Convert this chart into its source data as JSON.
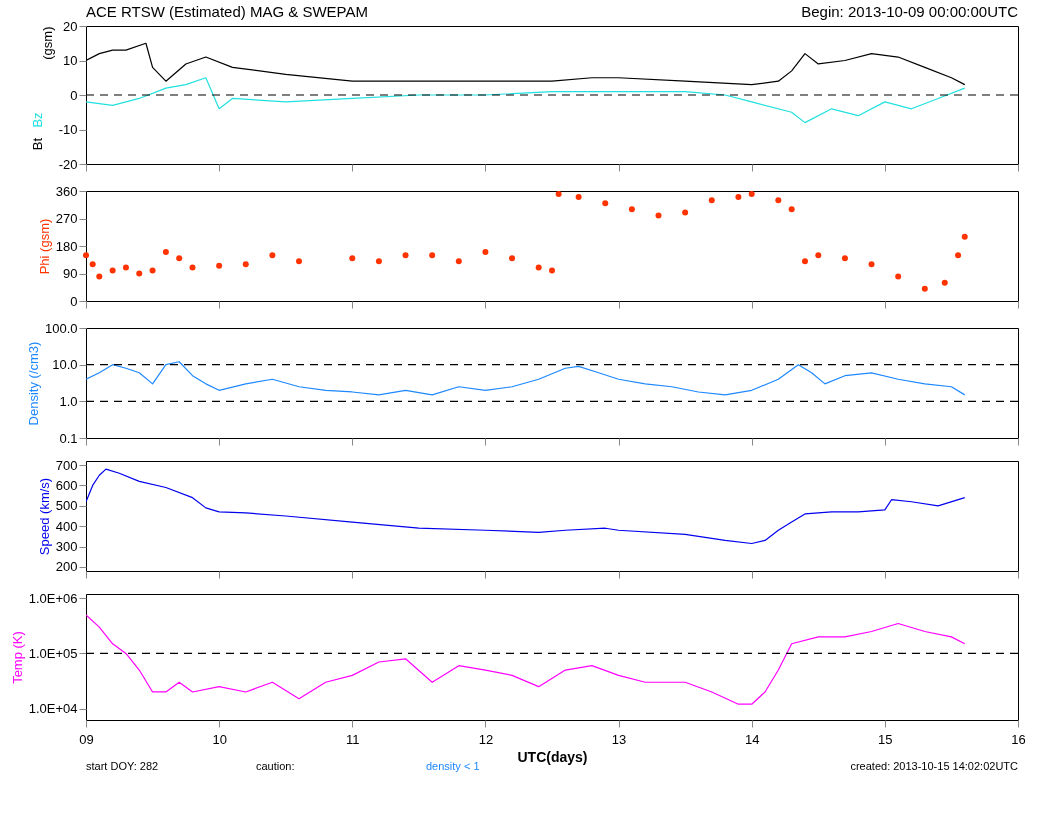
{
  "chart_data": [
    {
      "type": "line",
      "title": "ACE RTSW (Estimated) MAG & SWEPAM",
      "subtitle": "Begin: 2013-10-09 00:00:00UTC",
      "ylabel": "(gsm)",
      "xlim": [
        9,
        16
      ],
      "tick_labels": "y",
      "ylim": [
        -20,
        20
      ],
      "yticks": [
        -20,
        -10,
        0,
        10,
        20
      ],
      "ref_lines": [
        {
          "axis": "y",
          "value": 0,
          "line_style": "dashed",
          "color": "#000000"
        }
      ],
      "series": [
        {
          "name": "Bt",
          "color": "#000000",
          "x": [
            9,
            9.1,
            9.2,
            9.3,
            9.45,
            9.5,
            9.6,
            9.75,
            9.9,
            10.1,
            10.5,
            11,
            11.5,
            12,
            12.5,
            12.8,
            13,
            13.5,
            14,
            14.2,
            14.3,
            14.4,
            14.5,
            14.7,
            14.9,
            15.1,
            15.3,
            15.5,
            15.6
          ],
          "values": [
            10,
            12,
            13,
            13,
            15,
            8,
            4,
            9,
            11,
            8,
            6,
            4,
            4,
            4,
            4,
            5,
            5,
            4,
            3,
            4,
            7,
            12,
            9,
            10,
            12,
            11,
            8,
            5,
            3
          ]
        },
        {
          "name": "Bz",
          "color": "#22e0e0",
          "x": [
            9,
            9.2,
            9.4,
            9.6,
            9.75,
            9.9,
            10,
            10.1,
            10.5,
            11,
            11.5,
            12,
            12.5,
            13,
            13.5,
            13.8,
            14,
            14.3,
            14.4,
            14.6,
            14.8,
            15,
            15.2,
            15.4,
            15.6
          ],
          "values": [
            -2,
            -3,
            -1,
            2,
            3,
            5,
            -4,
            -1,
            -2,
            -1,
            0,
            0,
            1,
            1,
            1,
            0,
            -2,
            -5,
            -8,
            -4,
            -6,
            -2,
            -4,
            -1,
            2
          ]
        }
      ]
    },
    {
      "type": "scatter",
      "ylabel": "Phi (gsm)",
      "marker": "circle",
      "xlim": [
        9,
        16
      ],
      "tick_labels": "y",
      "ylim": [
        0,
        360
      ],
      "yticks": [
        0,
        90,
        180,
        270,
        360
      ],
      "series": [
        {
          "color": "#ff3300",
          "x": [
            9,
            9.05,
            9.1,
            9.2,
            9.3,
            9.4,
            9.5,
            9.6,
            9.7,
            9.8,
            10,
            10.2,
            10.4,
            10.6,
            11,
            11.2,
            11.4,
            11.6,
            11.8,
            12,
            12.2,
            12.4,
            12.5,
            12.55,
            12.7,
            12.9,
            13.1,
            13.3,
            13.5,
            13.7,
            13.9,
            14,
            14.2,
            14.3,
            14.4,
            14.5,
            14.7,
            14.9,
            15.1,
            15.3,
            15.45,
            15.55,
            15.6
          ],
          "values": [
            150,
            120,
            80,
            100,
            110,
            90,
            100,
            160,
            140,
            110,
            115,
            120,
            150,
            130,
            140,
            130,
            150,
            150,
            130,
            160,
            140,
            110,
            100,
            350,
            340,
            320,
            300,
            280,
            290,
            330,
            340,
            350,
            330,
            300,
            130,
            150,
            140,
            120,
            80,
            40,
            60,
            150,
            210
          ]
        }
      ]
    },
    {
      "type": "line",
      "ylabel": "Density (/cm3)",
      "log": true,
      "xlim": [
        9,
        16
      ],
      "tick_labels": "y",
      "ylim": [
        0.1,
        100
      ],
      "yticks": [
        0.1,
        {
          "value": 1,
          "label": "1.0"
        },
        {
          "value": 10,
          "label": "10.0"
        },
        {
          "value": 100,
          "label": "100.0"
        }
      ],
      "ref_lines": [
        {
          "axis": "y",
          "value": 1,
          "line_style": "dashed",
          "color": "#000000"
        },
        {
          "axis": "y",
          "value": 10,
          "line_style": "dashed",
          "color": "#000000"
        }
      ],
      "series": [
        {
          "color": "#1e88ff",
          "x": [
            9,
            9.1,
            9.2,
            9.3,
            9.4,
            9.5,
            9.6,
            9.7,
            9.8,
            9.9,
            10,
            10.2,
            10.4,
            10.6,
            10.8,
            11,
            11.2,
            11.4,
            11.6,
            11.8,
            12,
            12.2,
            12.4,
            12.6,
            12.7,
            12.85,
            13,
            13.2,
            13.4,
            13.6,
            13.8,
            14,
            14.2,
            14.35,
            14.45,
            14.55,
            14.7,
            14.9,
            15.1,
            15.3,
            15.5,
            15.6
          ],
          "values": [
            4,
            6,
            10,
            8,
            6,
            3,
            10,
            12,
            5,
            3,
            2,
            3,
            4,
            2.5,
            2,
            1.8,
            1.5,
            2,
            1.5,
            2.5,
            2,
            2.5,
            4,
            8,
            9,
            6,
            4,
            3,
            2.5,
            1.8,
            1.5,
            2,
            4,
            10,
            6,
            3,
            5,
            6,
            4,
            3,
            2.5,
            1.5
          ]
        }
      ]
    },
    {
      "type": "line",
      "ylabel": "Speed (km/s)",
      "xlim": [
        9,
        16
      ],
      "tick_labels": "y",
      "ylim": [
        180,
        720
      ],
      "yticks": [
        200,
        300,
        400,
        500,
        600,
        700
      ],
      "series": [
        {
          "color": "#0000ee",
          "x": [
            9,
            9.05,
            9.1,
            9.15,
            9.25,
            9.4,
            9.6,
            9.8,
            9.9,
            10,
            10.2,
            10.5,
            11,
            11.5,
            12,
            12.4,
            12.6,
            12.9,
            13,
            13.5,
            13.8,
            14,
            14.1,
            14.2,
            14.3,
            14.4,
            14.6,
            14.8,
            15,
            15.05,
            15.2,
            15.4,
            15.6
          ],
          "values": [
            520,
            600,
            650,
            680,
            660,
            620,
            590,
            540,
            490,
            470,
            465,
            450,
            420,
            390,
            380,
            370,
            380,
            390,
            380,
            360,
            330,
            315,
            330,
            380,
            420,
            460,
            470,
            470,
            480,
            530,
            520,
            500,
            540
          ]
        }
      ]
    },
    {
      "type": "line",
      "ylabel": "Temp (K)",
      "xlabel": "UTC(days)",
      "log": true,
      "xlim": [
        9,
        16
      ],
      "xticks": [
        {
          "value": 9,
          "label": "09"
        },
        10,
        11,
        12,
        13,
        14,
        15,
        16
      ],
      "ylim": [
        6200,
        1200000
      ],
      "yticks": [
        {
          "value": 10000,
          "label": "1.0E+04"
        },
        {
          "value": 100000,
          "label": "1.0E+05"
        },
        {
          "value": 1000000,
          "label": "1.0E+06"
        }
      ],
      "ref_lines": [
        {
          "axis": "y",
          "value": 100000,
          "line_style": "dashed",
          "color": "#000000"
        }
      ],
      "annotations": [
        "start DOY: 282",
        "caution:",
        "density < 1",
        "created: 2013-10-15 14:02:02UTC"
      ],
      "series": [
        {
          "color": "#ff00ff",
          "x": [
            9,
            9.1,
            9.2,
            9.3,
            9.4,
            9.5,
            9.6,
            9.7,
            9.8,
            10,
            10.2,
            10.4,
            10.6,
            10.8,
            11,
            11.2,
            11.4,
            11.6,
            11.8,
            12,
            12.2,
            12.4,
            12.6,
            12.8,
            13,
            13.2,
            13.5,
            13.7,
            13.9,
            14,
            14.1,
            14.2,
            14.3,
            14.5,
            14.7,
            14.9,
            15.1,
            15.3,
            15.5,
            15.6
          ],
          "values": [
            500000,
            300000,
            150000,
            100000,
            50000,
            20000,
            20000,
            30000,
            20000,
            25000,
            20000,
            30000,
            15000,
            30000,
            40000,
            70000,
            80000,
            30000,
            60000,
            50000,
            40000,
            25000,
            50000,
            60000,
            40000,
            30000,
            30000,
            20000,
            12000,
            12000,
            20000,
            50000,
            150000,
            200000,
            200000,
            250000,
            350000,
            250000,
            200000,
            150000
          ]
        }
      ]
    }
  ]
}
